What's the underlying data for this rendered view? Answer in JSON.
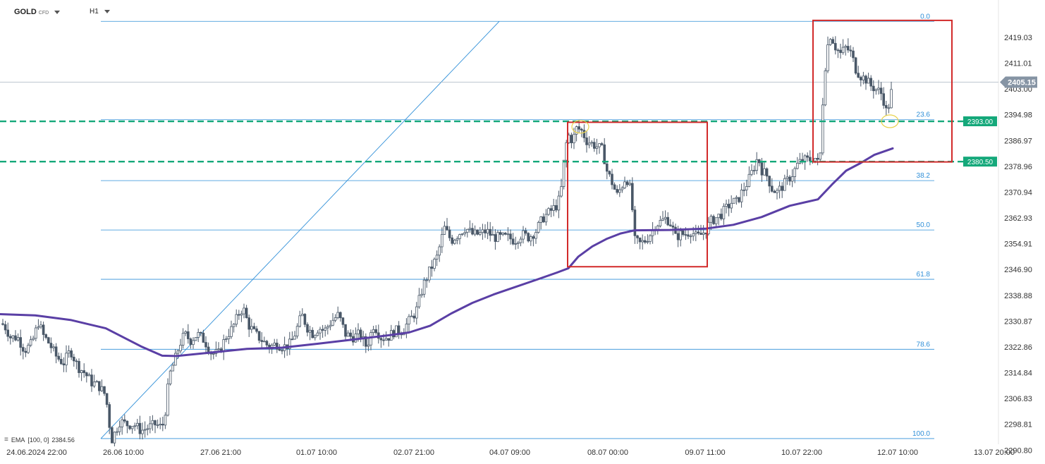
{
  "header": {
    "symbol": "GOLD",
    "instrument_type": "CFD",
    "timeframe": "H1"
  },
  "indicator": {
    "name": "EMA",
    "params": "[100, 0]",
    "value": "2384.56"
  },
  "colors": {
    "candle": "#4a5868",
    "ema": "#5a3fa5",
    "fib": "#2f8fd8",
    "support": "#14a87a",
    "box": "#d22a2a",
    "highlight": "#e8d24a"
  },
  "chart_data": {
    "type": "candlestick",
    "title": "",
    "xlabel": "",
    "ylabel": "",
    "ylim": [
      2294.8,
      2424.0
    ],
    "y_ticks": [
      "2419.03",
      "2411.01",
      "2403.00",
      "2394.98",
      "2386.97",
      "2378.96",
      "2370.94",
      "2362.93",
      "2354.91",
      "2346.90",
      "2338.88",
      "2330.87",
      "2322.86",
      "2314.84",
      "2306.83",
      "2298.81",
      "2290.80"
    ],
    "x_ticks": [
      "24.06.2024 22:00",
      "26.06 10:00",
      "27.06 21:00",
      "01.07 10:00",
      "02.07 21:00",
      "04.07 09:00",
      "08.07 00:00",
      "09.07 11:00",
      "10.07 22:00",
      "12.07 10:00",
      "13.07 20:00"
    ],
    "price_path": [
      [
        0,
        2331
      ],
      [
        8,
        2329
      ],
      [
        15,
        2326
      ],
      [
        25,
        2326
      ],
      [
        35,
        2322
      ],
      [
        45,
        2324
      ],
      [
        55,
        2331
      ],
      [
        60,
        2327
      ],
      [
        70,
        2324
      ],
      [
        80,
        2320
      ],
      [
        90,
        2318
      ],
      [
        100,
        2322
      ],
      [
        110,
        2317
      ],
      [
        120,
        2315
      ],
      [
        130,
        2312
      ],
      [
        140,
        2311
      ],
      [
        150,
        2308
      ],
      [
        158,
        2294
      ],
      [
        162,
        2296
      ],
      [
        170,
        2300
      ],
      [
        180,
        2299
      ],
      [
        190,
        2299
      ],
      [
        200,
        2297
      ],
      [
        210,
        2298
      ],
      [
        220,
        2299
      ],
      [
        230,
        2298
      ],
      [
        235,
        2304
      ],
      [
        240,
        2314
      ],
      [
        248,
        2319
      ],
      [
        255,
        2324
      ],
      [
        262,
        2327
      ],
      [
        270,
        2325
      ],
      [
        280,
        2327
      ],
      [
        290,
        2325
      ],
      [
        300,
        2321
      ],
      [
        310,
        2321
      ],
      [
        320,
        2326
      ],
      [
        330,
        2329
      ],
      [
        340,
        2334
      ],
      [
        345,
        2335
      ],
      [
        352,
        2330
      ],
      [
        362,
        2327
      ],
      [
        372,
        2325
      ],
      [
        382,
        2323
      ],
      [
        392,
        2324
      ],
      [
        402,
        2323
      ],
      [
        412,
        2324
      ],
      [
        420,
        2328
      ],
      [
        428,
        2333
      ],
      [
        436,
        2329
      ],
      [
        444,
        2327
      ],
      [
        452,
        2329
      ],
      [
        460,
        2328
      ],
      [
        470,
        2331
      ],
      [
        480,
        2333
      ],
      [
        490,
        2327
      ],
      [
        500,
        2326
      ],
      [
        510,
        2327
      ],
      [
        520,
        2323
      ],
      [
        530,
        2330
      ],
      [
        540,
        2326
      ],
      [
        550,
        2326
      ],
      [
        560,
        2328
      ],
      [
        570,
        2328
      ],
      [
        580,
        2331
      ],
      [
        590,
        2334
      ],
      [
        600,
        2342
      ],
      [
        610,
        2347
      ],
      [
        620,
        2351
      ],
      [
        630,
        2360
      ],
      [
        640,
        2356
      ],
      [
        650,
        2358
      ],
      [
        660,
        2360
      ],
      [
        670,
        2358
      ],
      [
        680,
        2358
      ],
      [
        690,
        2359
      ],
      [
        700,
        2357
      ],
      [
        710,
        2357
      ],
      [
        720,
        2357
      ],
      [
        730,
        2356
      ],
      [
        740,
        2358
      ],
      [
        750,
        2357
      ],
      [
        760,
        2359
      ],
      [
        770,
        2363
      ],
      [
        780,
        2365
      ],
      [
        790,
        2367
      ],
      [
        795,
        2370
      ],
      [
        800,
        2381
      ],
      [
        805,
        2389
      ],
      [
        812,
        2387
      ],
      [
        818,
        2391
      ],
      [
        825,
        2390
      ],
      [
        832,
        2387
      ],
      [
        840,
        2386
      ],
      [
        848,
        2385
      ],
      [
        855,
        2384
      ],
      [
        860,
        2378
      ],
      [
        868,
        2374
      ],
      [
        875,
        2370
      ],
      [
        882,
        2373
      ],
      [
        888,
        2376
      ],
      [
        895,
        2371
      ],
      [
        900,
        2356
      ],
      [
        908,
        2355
      ],
      [
        915,
        2356
      ],
      [
        922,
        2358
      ],
      [
        930,
        2361
      ],
      [
        938,
        2362
      ],
      [
        945,
        2363
      ],
      [
        952,
        2361
      ],
      [
        958,
        2357
      ],
      [
        965,
        2358
      ],
      [
        972,
        2358
      ],
      [
        980,
        2359
      ],
      [
        988,
        2357
      ],
      [
        995,
        2358
      ],
      [
        1000,
        2359
      ],
      [
        1008,
        2362
      ],
      [
        1015,
        2363
      ],
      [
        1022,
        2364
      ],
      [
        1030,
        2366
      ],
      [
        1038,
        2368
      ],
      [
        1045,
        2368
      ],
      [
        1052,
        2371
      ],
      [
        1060,
        2374
      ],
      [
        1068,
        2378
      ],
      [
        1075,
        2382
      ],
      [
        1080,
        2378
      ],
      [
        1088,
        2376
      ],
      [
        1095,
        2372
      ],
      [
        1102,
        2371
      ],
      [
        1110,
        2373
      ],
      [
        1118,
        2375
      ],
      [
        1125,
        2377
      ],
      [
        1132,
        2380
      ],
      [
        1140,
        2381
      ],
      [
        1148,
        2381
      ],
      [
        1155,
        2382
      ],
      [
        1160,
        2380
      ],
      [
        1163,
        2382
      ],
      [
        1167,
        2400
      ],
      [
        1172,
        2415
      ],
      [
        1178,
        2420
      ],
      [
        1185,
        2416
      ],
      [
        1192,
        2414
      ],
      [
        1200,
        2416
      ],
      [
        1207,
        2414
      ],
      [
        1214,
        2409
      ],
      [
        1221,
        2407
      ],
      [
        1228,
        2406
      ],
      [
        1235,
        2404
      ],
      [
        1242,
        2403
      ],
      [
        1249,
        2402
      ],
      [
        1254,
        2399
      ],
      [
        1258,
        2395
      ],
      [
        1262,
        2400
      ],
      [
        1266,
        2404
      ]
    ],
    "series": [
      {
        "name": "EMA",
        "points": [
          [
            0,
            2333.2
          ],
          [
            50,
            2332.8
          ],
          [
            100,
            2331.4
          ],
          [
            150,
            2328.8
          ],
          [
            200,
            2323.2
          ],
          [
            230,
            2320.3
          ],
          [
            250,
            2320.2
          ],
          [
            300,
            2321.3
          ],
          [
            350,
            2322.4
          ],
          [
            400,
            2322.8
          ],
          [
            450,
            2324
          ],
          [
            500,
            2325.3
          ],
          [
            550,
            2326.6
          ],
          [
            580,
            2327.5
          ],
          [
            610,
            2329.6
          ],
          [
            640,
            2333.4
          ],
          [
            670,
            2336.7
          ],
          [
            700,
            2339.3
          ],
          [
            720,
            2340.8
          ],
          [
            760,
            2343.8
          ],
          [
            790,
            2346.1
          ],
          [
            806,
            2347.4
          ],
          [
            820,
            2351
          ],
          [
            840,
            2354.2
          ],
          [
            860,
            2356.5
          ],
          [
            880,
            2358.2
          ],
          [
            900,
            2359.2
          ],
          [
            950,
            2359.3
          ],
          [
            1000,
            2359.7
          ],
          [
            1040,
            2360.9
          ],
          [
            1080,
            2363.3
          ],
          [
            1120,
            2366.8
          ],
          [
            1160,
            2368.8
          ],
          [
            1180,
            2373.4
          ],
          [
            1200,
            2377.7
          ],
          [
            1220,
            2380
          ],
          [
            1240,
            2382.6
          ],
          [
            1266,
            2384.6
          ]
        ]
      }
    ],
    "fibonacci": {
      "range": [
        2294.6,
        2424.0
      ],
      "levels": [
        {
          "label": "0.0",
          "value": 2424.0
        },
        {
          "label": "23.6",
          "value": 2393.5
        },
        {
          "label": "38.2",
          "value": 2374.6
        },
        {
          "label": "50.0",
          "value": 2359.3
        },
        {
          "label": "61.8",
          "value": 2344.0
        },
        {
          "label": "78.6",
          "value": 2322.3
        },
        {
          "label": "100.0",
          "value": 2294.6
        }
      ]
    },
    "support_lines": [
      {
        "label": "2393.00",
        "value": 2393.0
      },
      {
        "label": "2380.50",
        "value": 2380.5
      }
    ],
    "last_price": {
      "label": "2405.15",
      "value": 2405.15
    },
    "annotations": [
      {
        "type": "box",
        "x0": 805,
        "x1": 1003,
        "y_top": 2392.7,
        "y_bottom": 2347.9
      },
      {
        "type": "box",
        "x0": 1153,
        "x1": 1350,
        "y_top": 2424.3,
        "y_bottom": 2380.4
      },
      {
        "type": "circle",
        "x": 823,
        "y": 2391.3
      },
      {
        "type": "circle",
        "x": 1262,
        "y": 2393.0
      }
    ]
  }
}
